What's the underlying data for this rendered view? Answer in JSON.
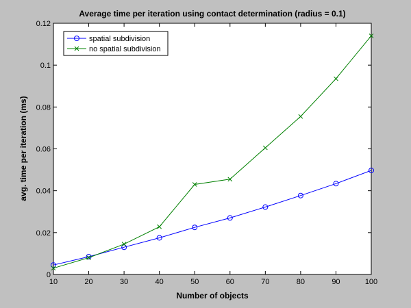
{
  "chart_data": {
    "type": "line",
    "title": "Average time per iteration using contact determination (radius = 0.1)",
    "xlabel": "Number of objects",
    "ylabel": "avg. time per iteration (ms)",
    "xlim": [
      10,
      100
    ],
    "ylim": [
      0,
      0.12
    ],
    "xticks": [
      10,
      20,
      30,
      40,
      50,
      60,
      70,
      80,
      90,
      100
    ],
    "xtick_labels": [
      "10",
      "20",
      "30",
      "40",
      "50",
      "60",
      "70",
      "80",
      "90",
      "100"
    ],
    "yticks": [
      0,
      0.02,
      0.04,
      0.06,
      0.08,
      0.1,
      0.12
    ],
    "ytick_labels": [
      "0",
      "0.02",
      "0.04",
      "0.06",
      "0.08",
      "0.1",
      "0.12"
    ],
    "grid": false,
    "legend_position": "top-left",
    "x": [
      10,
      20,
      30,
      40,
      50,
      60,
      70,
      80,
      90,
      100
    ],
    "series": [
      {
        "name": "spatial subdivision",
        "color": "#0000ff",
        "marker": "circle",
        "values": [
          0.0045,
          0.0085,
          0.013,
          0.0175,
          0.0225,
          0.027,
          0.0322,
          0.0377,
          0.0434,
          0.0497
        ]
      },
      {
        "name": "no spatial subdivision",
        "color": "#008000",
        "marker": "x",
        "values": [
          0.003,
          0.008,
          0.0145,
          0.0228,
          0.043,
          0.0455,
          0.0605,
          0.0755,
          0.0935,
          0.114
        ]
      }
    ]
  }
}
